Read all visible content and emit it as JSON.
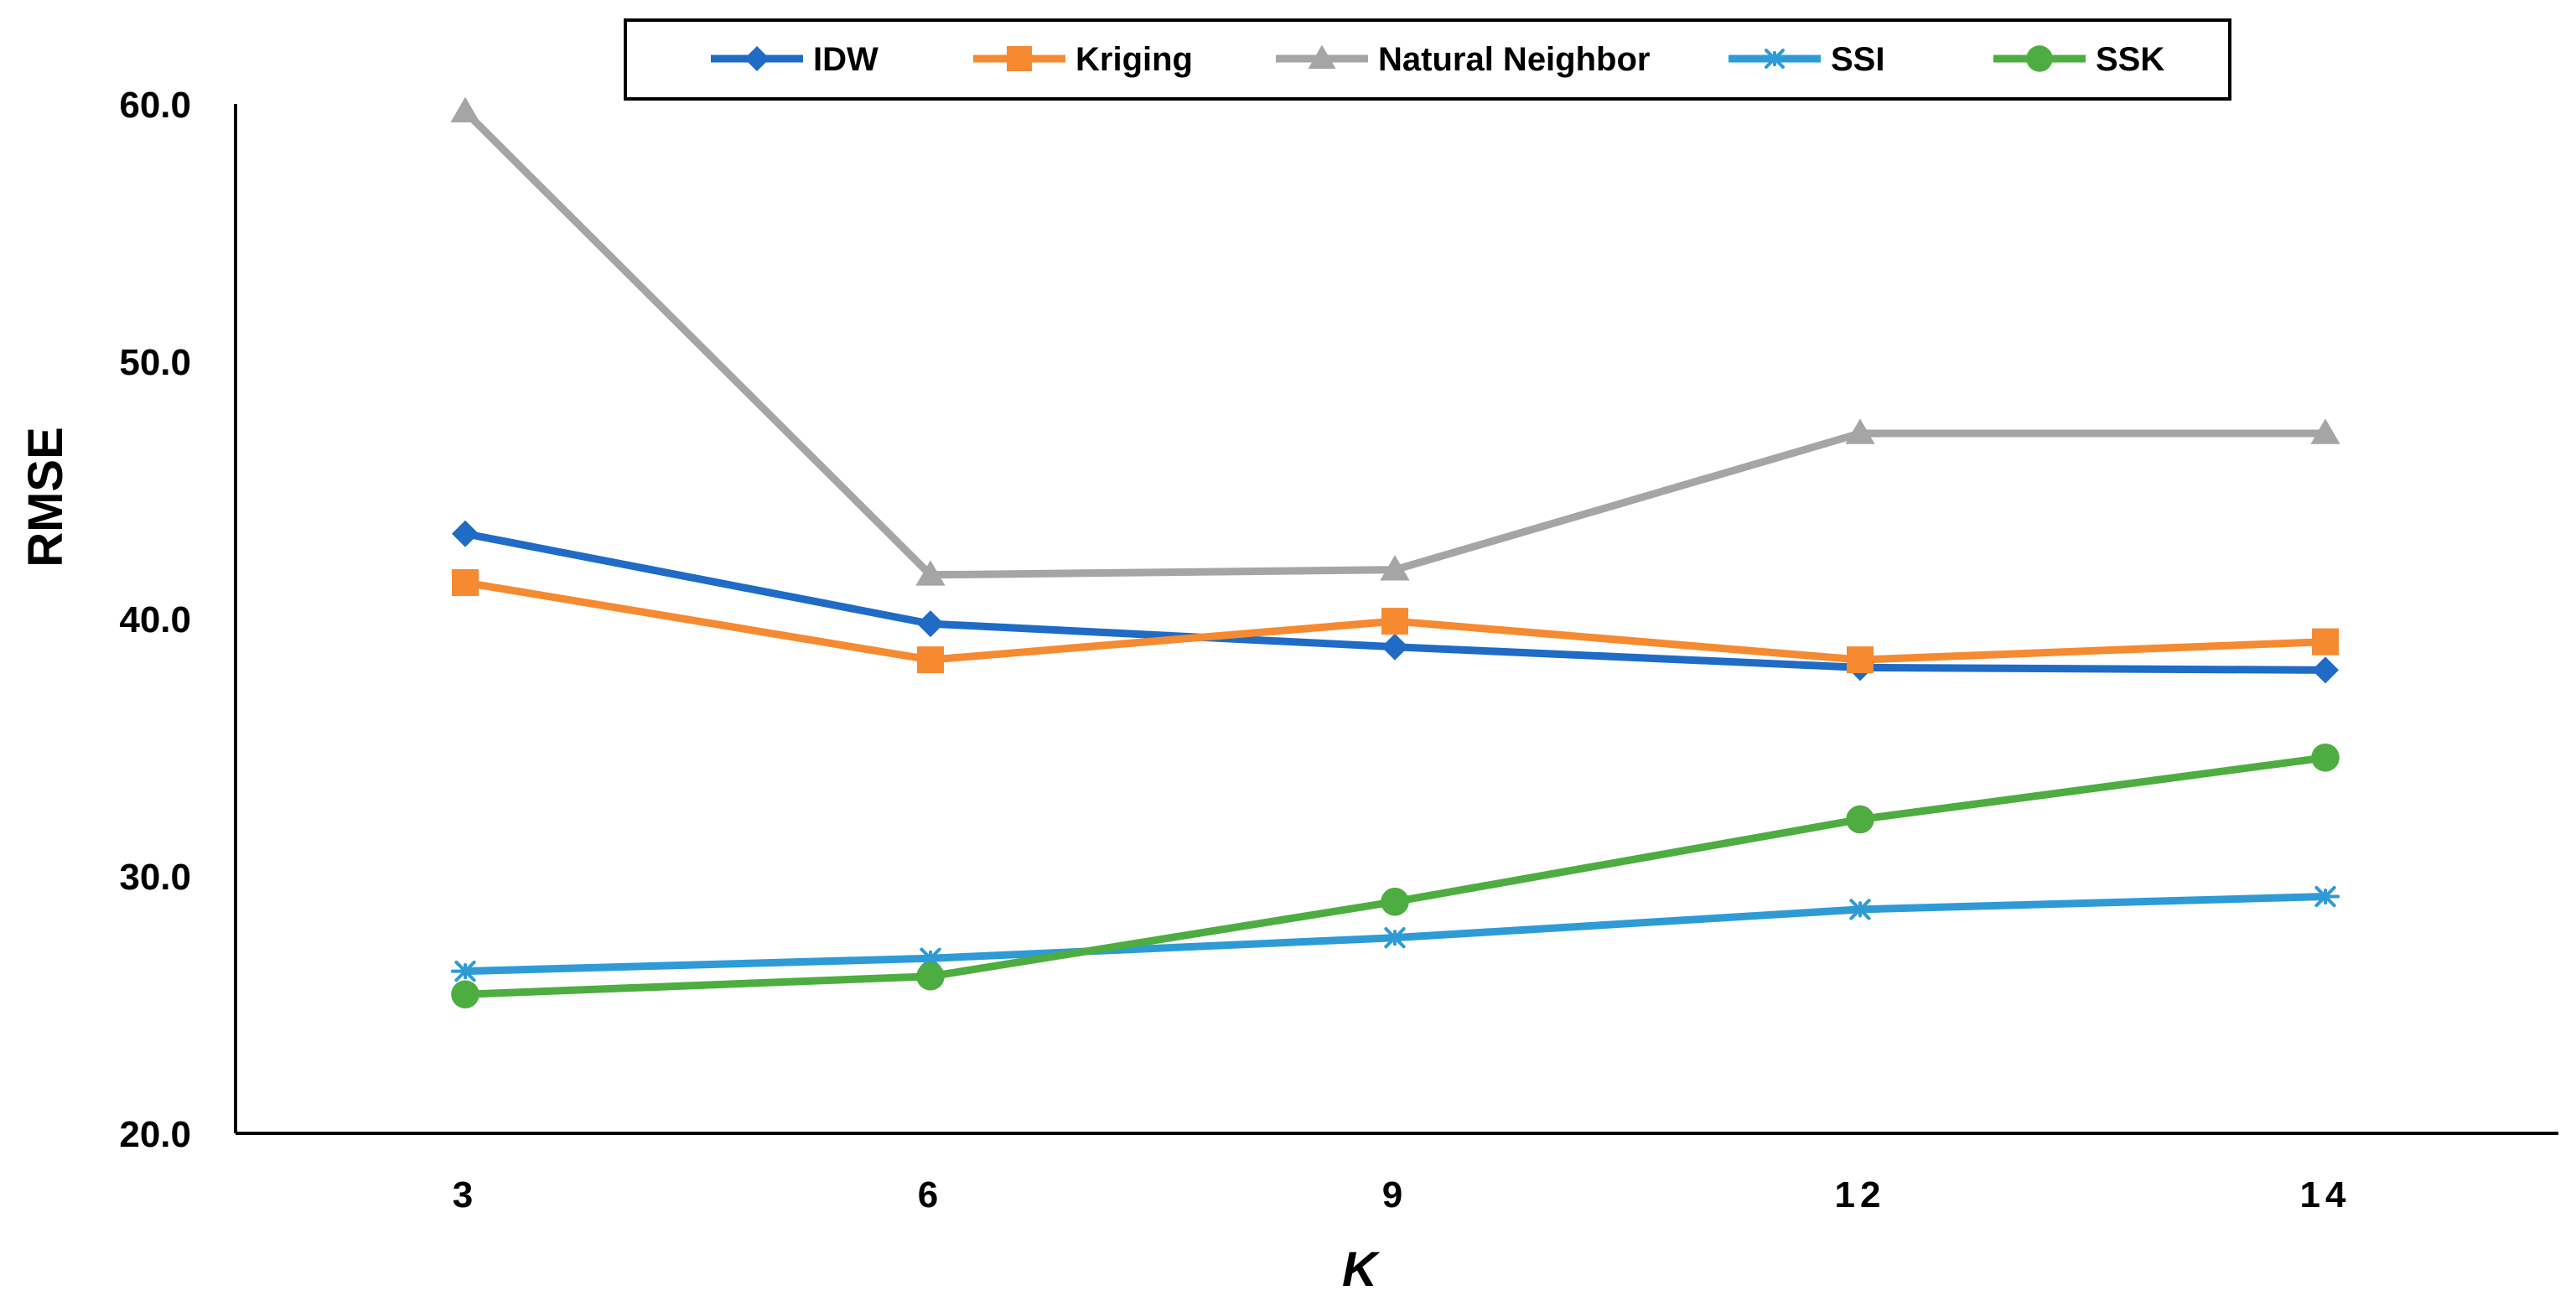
{
  "chart_data": {
    "type": "line",
    "title": "",
    "xlabel": "K",
    "ylabel": "RMSE",
    "categories": [
      "3",
      "6",
      "9",
      "12",
      "14"
    ],
    "ylim": [
      20,
      60
    ],
    "yticks": [
      "20.0",
      "30.0",
      "40.0",
      "50.0",
      "60.0"
    ],
    "grid": false,
    "legend_position": "top-center",
    "series": [
      {
        "name": "IDW",
        "color": "#1F6BC6",
        "marker": "diamond",
        "values": [
          43.3,
          39.8,
          38.9,
          38.1,
          38.0
        ]
      },
      {
        "name": "Kriging",
        "color": "#F58A31",
        "marker": "square",
        "values": [
          41.4,
          38.4,
          39.9,
          38.4,
          39.1
        ]
      },
      {
        "name": "Natural Neighbor",
        "color": "#A5A5A5",
        "marker": "triangle",
        "values": [
          59.7,
          41.7,
          41.9,
          47.2,
          47.2
        ]
      },
      {
        "name": "SSI",
        "color": "#2E9BD6",
        "marker": "asterisk",
        "values": [
          26.3,
          26.8,
          27.6,
          28.7,
          29.2
        ]
      },
      {
        "name": "SSK",
        "color": "#4DAD40",
        "marker": "circle",
        "values": [
          25.4,
          26.1,
          29.0,
          32.2,
          34.6
        ]
      }
    ]
  }
}
